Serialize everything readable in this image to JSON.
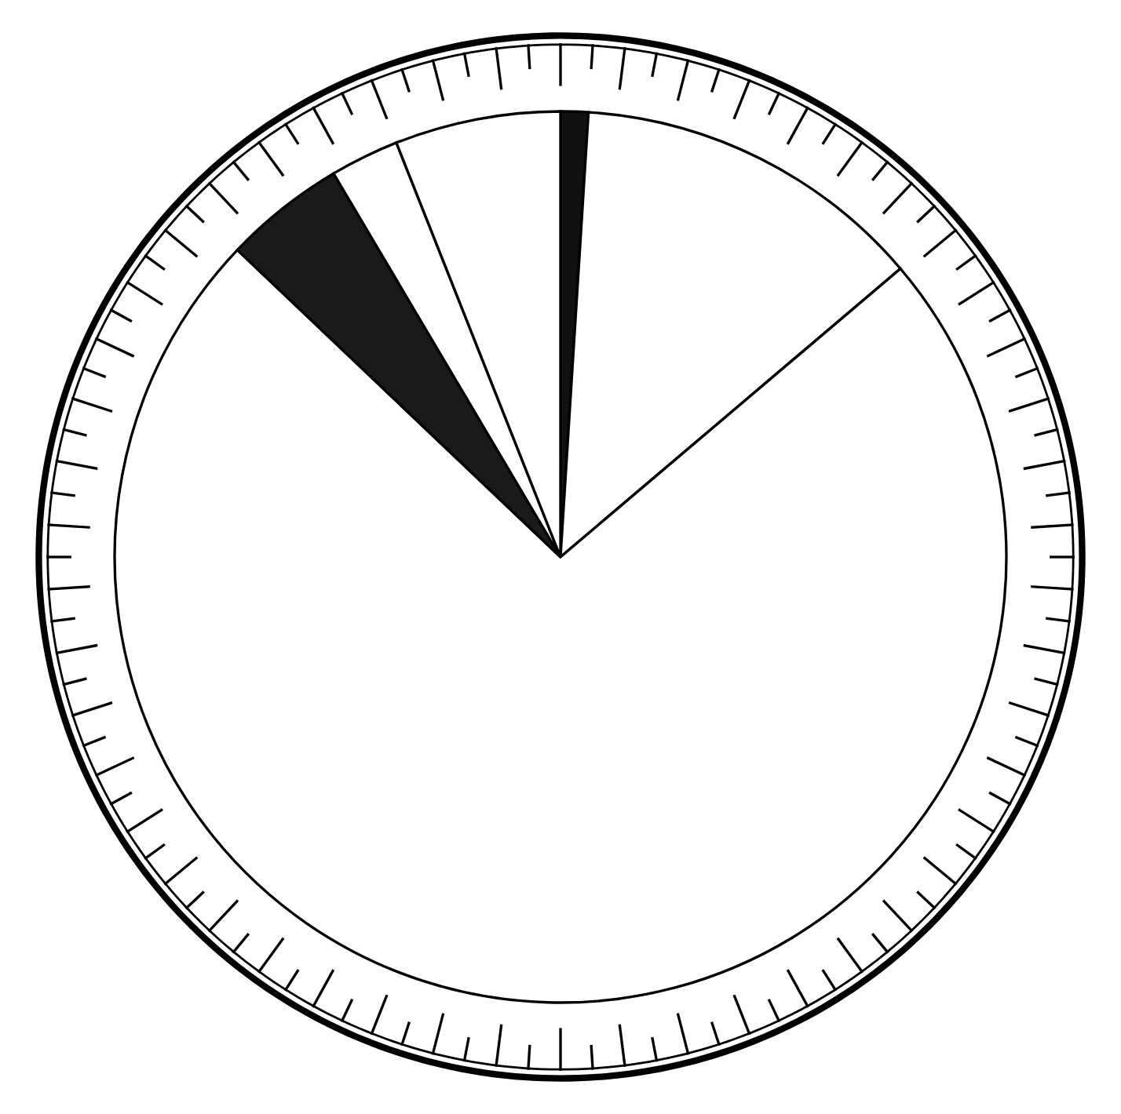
{
  "chart_data": {
    "type": "pie",
    "categories": [
      null,
      null,
      null,
      null,
      null,
      null
    ],
    "values": [
      1,
      12.8,
      73.3,
      4.4,
      2.5,
      6.0
    ],
    "colors": [
      "#111111",
      "#ffffff",
      "#ffffff",
      "#1a1a1a",
      "#ffffff",
      "#ffffff"
    ]
  }
}
